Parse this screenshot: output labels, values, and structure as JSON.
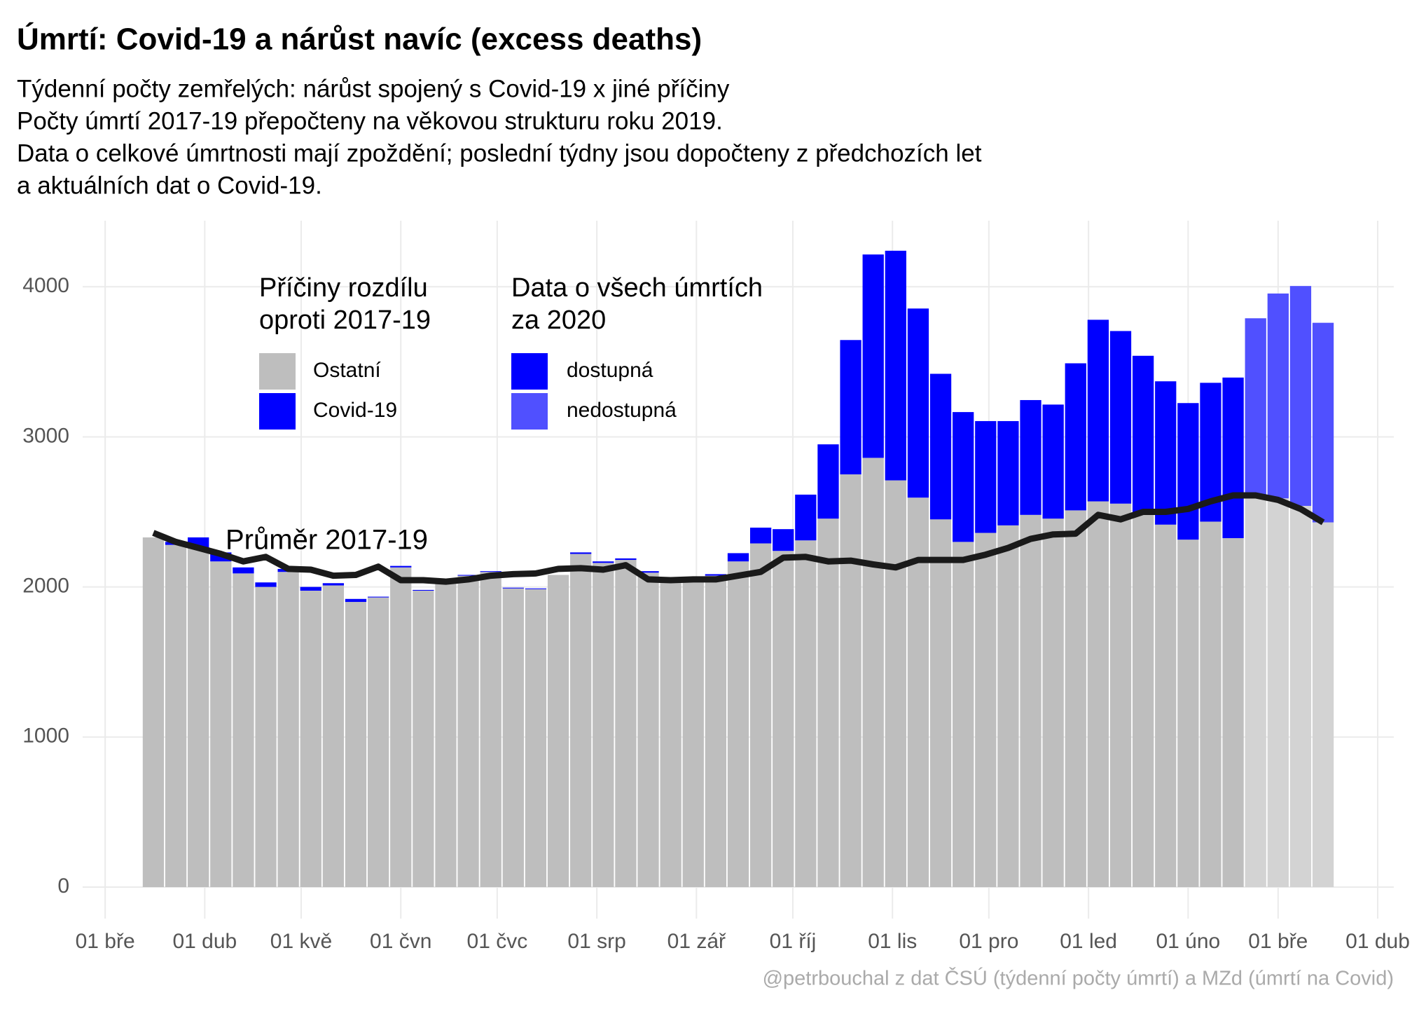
{
  "chart_data": {
    "type": "stacked-bar",
    "title": "Úmrtí: Covid-19 a nárůst navíc (excess deaths)",
    "subtitle": [
      "Týdenní počty zemřelých: nárůst spojený s Covid-19 x jiné příčiny",
      "Počty úmrtí 2017-19 přepočteny na věkovou strukturu roku 2019.",
      "Data o celkové úmrtnosti mají zpoždění; poslední týdny jsou dopočteny z předchozích let",
      "a aktuálních dat o Covid-19."
    ],
    "caption": "@petrbouchal z dat ČSÚ (týdenní počty úmrtí) a MZd (úmrtí na Covid)",
    "x": [
      15,
      22,
      29,
      36,
      43,
      50,
      57,
      64,
      71,
      78,
      85,
      92,
      99,
      106,
      113,
      120,
      127,
      134,
      141,
      148,
      155,
      162,
      169,
      176,
      183,
      190,
      197,
      204,
      211,
      218,
      225,
      232,
      239,
      246,
      253,
      260,
      267,
      274,
      281,
      288,
      295,
      302,
      309,
      316,
      323,
      330,
      337,
      344,
      351,
      358,
      365,
      372,
      379
    ],
    "xlim": [
      -7,
      401
    ],
    "xticks": [
      {
        "value": 0,
        "label": "01 bře"
      },
      {
        "value": 31,
        "label": "01 dub"
      },
      {
        "value": 61,
        "label": "01 kvě"
      },
      {
        "value": 92,
        "label": "01 čvn"
      },
      {
        "value": 122,
        "label": "01 čvc"
      },
      {
        "value": 153,
        "label": "01 srp"
      },
      {
        "value": 184,
        "label": "01 zář"
      },
      {
        "value": 214,
        "label": "01 říj"
      },
      {
        "value": 245,
        "label": "01 lis"
      },
      {
        "value": 275,
        "label": "01 pro"
      },
      {
        "value": 306,
        "label": "01 led"
      },
      {
        "value": 337,
        "label": "01 úno"
      },
      {
        "value": 365,
        "label": "01 bře"
      },
      {
        "value": 396,
        "label": "01 dub"
      }
    ],
    "ylim": [
      -210,
      4440
    ],
    "yticks": [
      0,
      1000,
      2000,
      3000,
      4000
    ],
    "grid": true,
    "legend_title": [
      "Příčiny rozdílu",
      "oproti 2017-19"
    ],
    "series": [
      {
        "name": "Ostatní",
        "color": "#bebebe",
        "values": [
          2330,
          2280,
          2260,
          2170,
          2090,
          2000,
          2100,
          1975,
          2010,
          1900,
          1930,
          2130,
          1975,
          2040,
          2075,
          2100,
          1990,
          1985,
          2080,
          2220,
          2160,
          2180,
          2095,
          2040,
          2050,
          2075,
          2170,
          2290,
          2240,
          2310,
          2455,
          2750,
          2860,
          2710,
          2595,
          2450,
          2300,
          2360,
          2410,
          2480,
          2455,
          2510,
          2570,
          2555,
          2500,
          2415,
          2315,
          2435,
          2325,
          2600,
          2590,
          2540,
          2430
        ]
      },
      {
        "name": "Covid-19",
        "color": "#0000ff",
        "values": [
          0,
          20,
          70,
          60,
          40,
          30,
          20,
          25,
          15,
          20,
          5,
          10,
          5,
          0,
          5,
          5,
          5,
          5,
          0,
          10,
          10,
          10,
          10,
          0,
          0,
          10,
          55,
          105,
          145,
          305,
          495,
          895,
          1355,
          1530,
          1260,
          970,
          865,
          745,
          695,
          765,
          760,
          980,
          1210,
          1150,
          1040,
          955,
          910,
          925,
          1070,
          1190,
          1365,
          1465,
          1330
        ]
      }
    ],
    "availability": {
      "title": [
        "Data o všech úmrtích",
        "za 2020"
      ],
      "levels": [
        {
          "name": "dostupná",
          "color": "#0000ff",
          "base_color": "#bebebe"
        },
        {
          "name": "nedostupná",
          "color": "#5050ff",
          "base_color": "#d3d3d3"
        }
      ],
      "available": [
        true,
        true,
        true,
        true,
        true,
        true,
        true,
        true,
        true,
        true,
        true,
        true,
        true,
        true,
        true,
        true,
        true,
        true,
        true,
        true,
        true,
        true,
        true,
        true,
        true,
        true,
        true,
        true,
        true,
        true,
        true,
        true,
        true,
        true,
        true,
        true,
        true,
        true,
        true,
        true,
        true,
        true,
        true,
        true,
        true,
        true,
        true,
        true,
        true,
        false,
        false,
        false,
        false
      ]
    },
    "line": {
      "name": "Průměr 2017-19",
      "color": "#1a1a1a",
      "values": [
        2360,
        2300,
        2260,
        2220,
        2170,
        2200,
        2120,
        2115,
        2075,
        2080,
        2135,
        2045,
        2045,
        2035,
        2050,
        2075,
        2085,
        2090,
        2120,
        2125,
        2115,
        2145,
        2050,
        2045,
        2050,
        2050,
        2075,
        2100,
        2195,
        2200,
        2170,
        2175,
        2150,
        2130,
        2180,
        2180,
        2180,
        2215,
        2260,
        2320,
        2350,
        2355,
        2480,
        2450,
        2500,
        2500,
        2520,
        2570,
        2610,
        2610,
        2580,
        2520,
        2430
      ]
    }
  }
}
